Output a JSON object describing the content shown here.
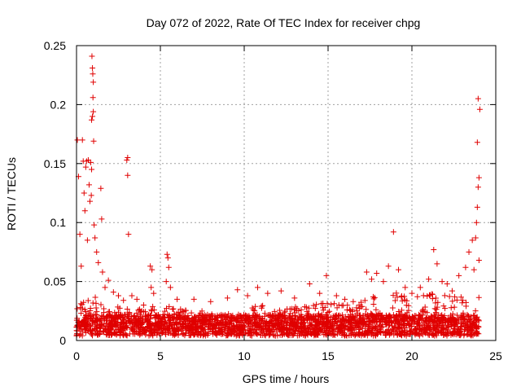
{
  "chart_data": {
    "type": "scatter",
    "title": "Day 072 of 2022, Rate Of TEC Index for receiver chpg",
    "xlabel": "GPS time / hours",
    "ylabel": "ROTI / TECUs",
    "xlim": [
      0,
      25
    ],
    "ylim": [
      0,
      0.25
    ],
    "x_ticks": [
      0,
      5,
      10,
      15,
      20,
      25
    ],
    "y_ticks": [
      0,
      0.05,
      0.1,
      0.15,
      0.2,
      0.25
    ],
    "x_tick_labels": [
      "0",
      "5",
      "10",
      "15",
      "20",
      "25"
    ],
    "y_tick_labels": [
      "0",
      "0.05",
      "0.1",
      "0.15",
      "0.2",
      "0.25"
    ],
    "grid": true,
    "legend": "none",
    "marker": "+",
    "color": "#e00000",
    "series": [
      {
        "points": [
          [
            0.05,
            0.17
          ],
          [
            0.12,
            0.139
          ],
          [
            0.2,
            0.09
          ],
          [
            0.28,
            0.063
          ],
          [
            0.35,
            0.17
          ],
          [
            0.4,
            0.152
          ],
          [
            0.45,
            0.125
          ],
          [
            0.5,
            0.11
          ],
          [
            0.55,
            0.147
          ],
          [
            0.6,
            0.152
          ],
          [
            0.65,
            0.085
          ],
          [
            0.7,
            0.153
          ],
          [
            0.75,
            0.132
          ],
          [
            0.8,
            0.118
          ],
          [
            0.85,
            0.151
          ],
          [
            0.9,
            0.187
          ],
          [
            0.92,
            0.241
          ],
          [
            0.95,
            0.231
          ],
          [
            0.97,
            0.226
          ],
          [
            1.0,
            0.219
          ],
          [
            0.98,
            0.206
          ],
          [
            1.0,
            0.194
          ],
          [
            0.95,
            0.19
          ],
          [
            1.02,
            0.169
          ],
          [
            0.9,
            0.145
          ],
          [
            0.88,
            0.123
          ],
          [
            1.05,
            0.098
          ],
          [
            1.1,
            0.087
          ],
          [
            1.2,
            0.075
          ],
          [
            1.3,
            0.066
          ],
          [
            1.45,
            0.129
          ],
          [
            1.5,
            0.103
          ],
          [
            1.55,
            0.058
          ],
          [
            1.7,
            0.045
          ],
          [
            1.9,
            0.051
          ],
          [
            2.2,
            0.041
          ],
          [
            2.5,
            0.038
          ],
          [
            2.8,
            0.034
          ],
          [
            3.05,
            0.155
          ],
          [
            3.0,
            0.153
          ],
          [
            3.05,
            0.14
          ],
          [
            3.1,
            0.09
          ],
          [
            3.3,
            0.038
          ],
          [
            3.6,
            0.035
          ],
          [
            4.0,
            0.03
          ],
          [
            4.4,
            0.063
          ],
          [
            4.5,
            0.06
          ],
          [
            4.45,
            0.045
          ],
          [
            4.6,
            0.04
          ],
          [
            5.4,
            0.073
          ],
          [
            5.45,
            0.07
          ],
          [
            5.5,
            0.062
          ],
          [
            5.35,
            0.05
          ],
          [
            5.6,
            0.045
          ],
          [
            6.0,
            0.035
          ],
          [
            7.0,
            0.035
          ],
          [
            8.0,
            0.033
          ],
          [
            9.0,
            0.036
          ],
          [
            9.6,
            0.043
          ],
          [
            10.2,
            0.038
          ],
          [
            10.8,
            0.045
          ],
          [
            11.4,
            0.04
          ],
          [
            12.2,
            0.042
          ],
          [
            13.0,
            0.036
          ],
          [
            13.9,
            0.048
          ],
          [
            14.5,
            0.04
          ],
          [
            14.9,
            0.055
          ],
          [
            15.5,
            0.038
          ],
          [
            16.0,
            0.035
          ],
          [
            16.5,
            0.033
          ],
          [
            17.3,
            0.058
          ],
          [
            17.6,
            0.052
          ],
          [
            17.9,
            0.057
          ],
          [
            18.3,
            0.05
          ],
          [
            18.6,
            0.063
          ],
          [
            18.9,
            0.092
          ],
          [
            19.2,
            0.06
          ],
          [
            19.6,
            0.045
          ],
          [
            20.0,
            0.04
          ],
          [
            20.5,
            0.045
          ],
          [
            21.0,
            0.052
          ],
          [
            21.3,
            0.077
          ],
          [
            21.5,
            0.065
          ],
          [
            21.8,
            0.05
          ],
          [
            22.1,
            0.048
          ],
          [
            22.4,
            0.042
          ],
          [
            22.8,
            0.055
          ],
          [
            23.2,
            0.062
          ],
          [
            23.4,
            0.075
          ],
          [
            23.6,
            0.085
          ],
          [
            23.8,
            0.087
          ],
          [
            23.85,
            0.1
          ],
          [
            23.9,
            0.113
          ],
          [
            23.95,
            0.13
          ],
          [
            24.0,
            0.138
          ],
          [
            23.9,
            0.168
          ],
          [
            24.05,
            0.196
          ],
          [
            23.95,
            0.205
          ],
          [
            24.0,
            0.068
          ],
          [
            23.7,
            0.06
          ]
        ],
        "band": {
          "x_range": [
            0,
            24
          ],
          "baseline_min": 0.004,
          "baseline_max": 0.022,
          "envelope": [
            [
              0,
              0.03
            ],
            [
              1,
              0.04
            ],
            [
              2,
              0.03
            ],
            [
              3,
              0.028
            ],
            [
              4,
              0.026
            ],
            [
              5,
              0.032
            ],
            [
              6,
              0.027
            ],
            [
              7,
              0.026
            ],
            [
              8,
              0.024
            ],
            [
              9,
              0.026
            ],
            [
              10,
              0.027
            ],
            [
              11,
              0.03
            ],
            [
              12,
              0.03
            ],
            [
              13,
              0.029
            ],
            [
              14,
              0.03
            ],
            [
              15,
              0.033
            ],
            [
              16,
              0.032
            ],
            [
              17,
              0.033
            ],
            [
              18,
              0.04
            ],
            [
              19,
              0.042
            ],
            [
              20,
              0.036
            ],
            [
              21,
              0.04
            ],
            [
              22,
              0.038
            ],
            [
              23,
              0.038
            ],
            [
              24,
              0.04
            ]
          ]
        }
      }
    ]
  }
}
